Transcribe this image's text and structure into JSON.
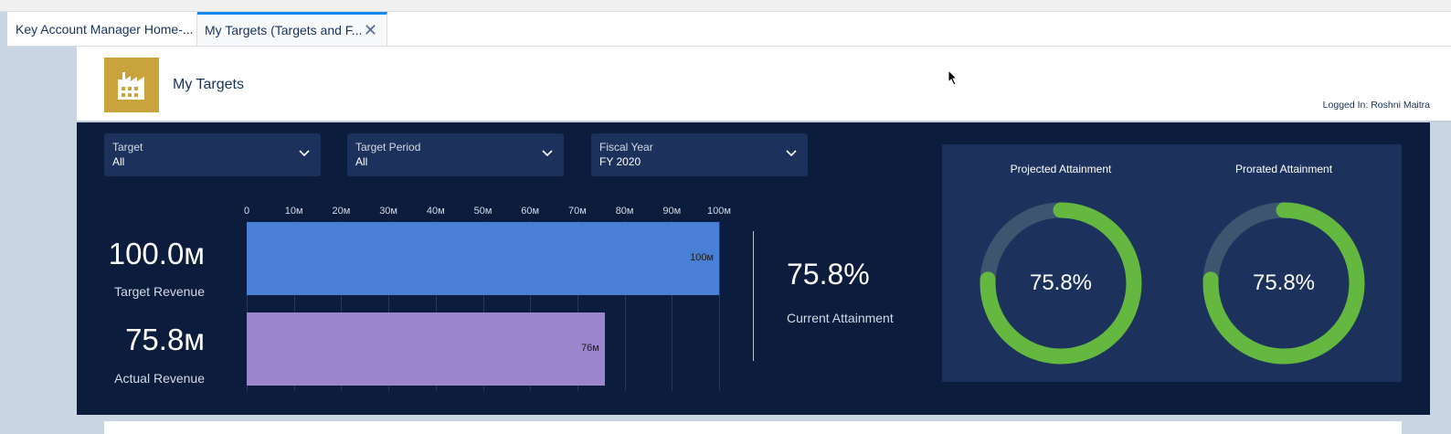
{
  "tabs": [
    {
      "label": "Key Account Manager Home-..."
    },
    {
      "label": "My Targets (Targets and F..."
    }
  ],
  "header": {
    "title": "My Targets",
    "logged_in": "Logged In: Roshni Maitra",
    "logo_icon": "factory-icon",
    "logo_color": "#c9a33c"
  },
  "filters": [
    {
      "label": "Target",
      "value": "All"
    },
    {
      "label": "Target Period",
      "value": "All"
    },
    {
      "label": "Fiscal Year",
      "value": "FY 2020"
    }
  ],
  "metrics": {
    "target_value": "100.0м",
    "target_label": "Target Revenue",
    "actual_value": "75.8м",
    "actual_label": "Actual Revenue",
    "current_attainment_value": "75.8%",
    "current_attainment_label": "Current Attainment"
  },
  "chart_data": {
    "type": "bar",
    "orientation": "horizontal",
    "categories": [
      "Target Revenue",
      "Actual Revenue"
    ],
    "values": [
      100,
      75.8
    ],
    "data_labels": [
      "100м",
      "76м"
    ],
    "xlim": [
      0,
      100
    ],
    "x_ticks": [
      0,
      10,
      20,
      30,
      40,
      50,
      60,
      70,
      80,
      90,
      100
    ],
    "x_tick_labels": [
      "0",
      "10м",
      "20м",
      "30м",
      "40м",
      "50м",
      "60м",
      "70м",
      "80м",
      "90м",
      "100м"
    ],
    "colors": [
      "#4a7fd6",
      "#9b85cc"
    ],
    "grid": true
  },
  "gauges": [
    {
      "title": "Projected Attainment",
      "value": 75.8,
      "display": "75.8%"
    },
    {
      "title": "Prorated Attainment",
      "value": 75.8,
      "display": "75.8%"
    }
  ],
  "colors": {
    "panel_bg": "#0c1c3d",
    "card_bg": "#1c325c",
    "gauge_fill": "#64b83f",
    "gauge_track": "#3e5570",
    "tab_accent": "#1589ee"
  }
}
